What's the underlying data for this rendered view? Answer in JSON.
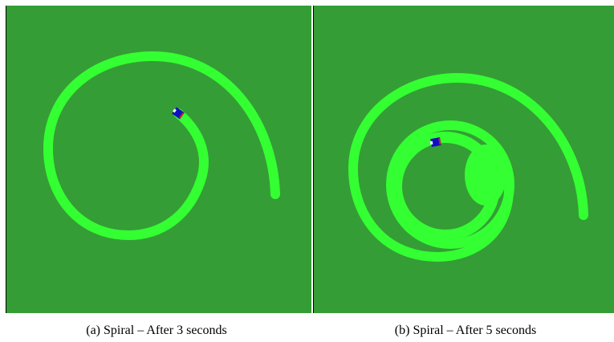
{
  "figures": [
    {
      "caption": "(a) Spiral – After 3 seconds"
    },
    {
      "caption": "(b) Spiral – After 5 seconds"
    }
  ]
}
